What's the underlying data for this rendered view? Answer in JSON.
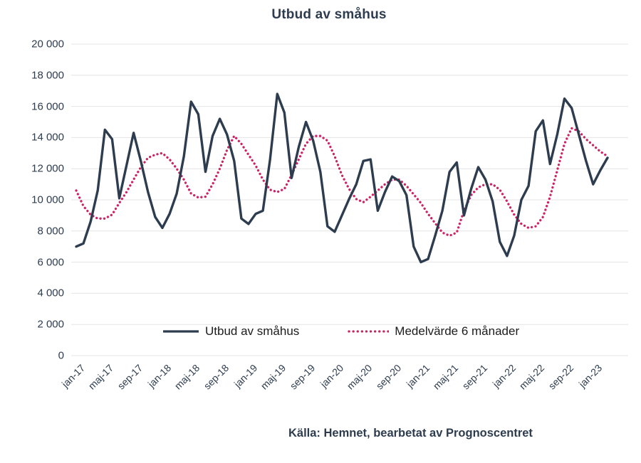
{
  "title": "Utbud av småhus",
  "source": "Källa: Hemnet, bearbetat av Prognoscentret",
  "colors": {
    "line": "#2d3c4e",
    "average": "#cf2265",
    "grid": "#e4e4e4",
    "axis_text": "#2d3c4e",
    "legend_text": "#1c1c1c",
    "background": "#ffffff"
  },
  "legend": {
    "items": [
      {
        "label": "Utbud av småhus",
        "style": "solid"
      },
      {
        "label": "Medelvärde 6 månader",
        "style": "dotted"
      }
    ]
  },
  "y_axis": {
    "min": 0,
    "max": 20000,
    "step": 2000,
    "tick_labels": [
      "0",
      "2 000",
      "4 000",
      "6 000",
      "8 000",
      "10 000",
      "12 000",
      "14 000",
      "16 000",
      "18 000",
      "20 000"
    ]
  },
  "x_axis": {
    "tick_every_n_months": 4,
    "shown_tick_labels": [
      "jan-17",
      "maj-17",
      "sep-17",
      "jan-18",
      "maj-18",
      "sep-18",
      "jan-19",
      "maj-19",
      "sep-19",
      "jan-20",
      "maj-20",
      "sep-20",
      "jan-21",
      "maj-21",
      "sep-21",
      "jan-22",
      "maj-22",
      "sep-22",
      "jan-23"
    ]
  },
  "chart_data": {
    "type": "line",
    "title": "Utbud av småhus",
    "xlabel": "",
    "ylabel": "",
    "ylim": [
      0,
      20000
    ],
    "grid": true,
    "legend_position": "bottom-inside",
    "x": [
      "jan-17",
      "feb-17",
      "mar-17",
      "apr-17",
      "maj-17",
      "jun-17",
      "jul-17",
      "aug-17",
      "sep-17",
      "okt-17",
      "nov-17",
      "dec-17",
      "jan-18",
      "feb-18",
      "mar-18",
      "apr-18",
      "maj-18",
      "jun-18",
      "jul-18",
      "aug-18",
      "sep-18",
      "okt-18",
      "nov-18",
      "dec-18",
      "jan-19",
      "feb-19",
      "mar-19",
      "apr-19",
      "maj-19",
      "jun-19",
      "jul-19",
      "aug-19",
      "sep-19",
      "okt-19",
      "nov-19",
      "dec-19",
      "jan-20",
      "feb-20",
      "mar-20",
      "apr-20",
      "maj-20",
      "jun-20",
      "jul-20",
      "aug-20",
      "sep-20",
      "okt-20",
      "nov-20",
      "dec-20",
      "jan-21",
      "feb-21",
      "mar-21",
      "apr-21",
      "maj-21",
      "jun-21",
      "jul-21",
      "aug-21",
      "sep-21",
      "okt-21",
      "nov-21",
      "dec-21",
      "jan-22",
      "feb-22",
      "mar-22",
      "apr-22",
      "maj-22",
      "jun-22",
      "jul-22",
      "aug-22",
      "sep-22",
      "okt-22",
      "nov-22",
      "dec-22",
      "jan-23",
      "feb-23",
      "mar-23"
    ],
    "series": [
      {
        "name": "Utbud av småhus",
        "style": "solid",
        "color": "#2d3c4e",
        "values": [
          7000,
          7200,
          8600,
          10600,
          14500,
          13900,
          10100,
          12200,
          14300,
          12500,
          10500,
          8900,
          8200,
          9100,
          10400,
          12800,
          16300,
          15500,
          11800,
          14100,
          15200,
          14200,
          12500,
          8800,
          8450,
          9100,
          9300,
          12600,
          16800,
          15600,
          11400,
          13400,
          15000,
          13800,
          11800,
          8300,
          7950,
          9000,
          10050,
          11000,
          12500,
          12600,
          9300,
          10500,
          11500,
          11200,
          10300,
          7000,
          6000,
          6200,
          7700,
          9300,
          11800,
          12400,
          9000,
          10700,
          12100,
          11300,
          9900,
          7300,
          6400,
          7700,
          10000,
          10900,
          14400,
          15100,
          12300,
          14200,
          16500,
          15900,
          14200,
          12500,
          11000,
          11900,
          12700
        ]
      },
      {
        "name": "Medelvärde 6 månader",
        "style": "dotted",
        "color": "#cf2265",
        "values": [
          10600,
          9600,
          9050,
          8800,
          8800,
          9050,
          9800,
          10500,
          11300,
          12100,
          12700,
          12900,
          13000,
          12600,
          12000,
          11300,
          10400,
          10150,
          10200,
          11000,
          12000,
          13200,
          14100,
          13600,
          12900,
          12200,
          11300,
          10650,
          10500,
          10700,
          11600,
          12600,
          13600,
          14100,
          14100,
          13800,
          12800,
          11600,
          10700,
          10050,
          9850,
          10200,
          10600,
          11000,
          11300,
          11300,
          10900,
          10350,
          9800,
          9100,
          8500,
          7900,
          7700,
          7900,
          9300,
          10300,
          10800,
          11000,
          11000,
          10650,
          9900,
          9050,
          8450,
          8200,
          8300,
          8900,
          10200,
          11900,
          13600,
          14600,
          14400,
          13900,
          13500,
          13100,
          12800
        ]
      }
    ]
  }
}
